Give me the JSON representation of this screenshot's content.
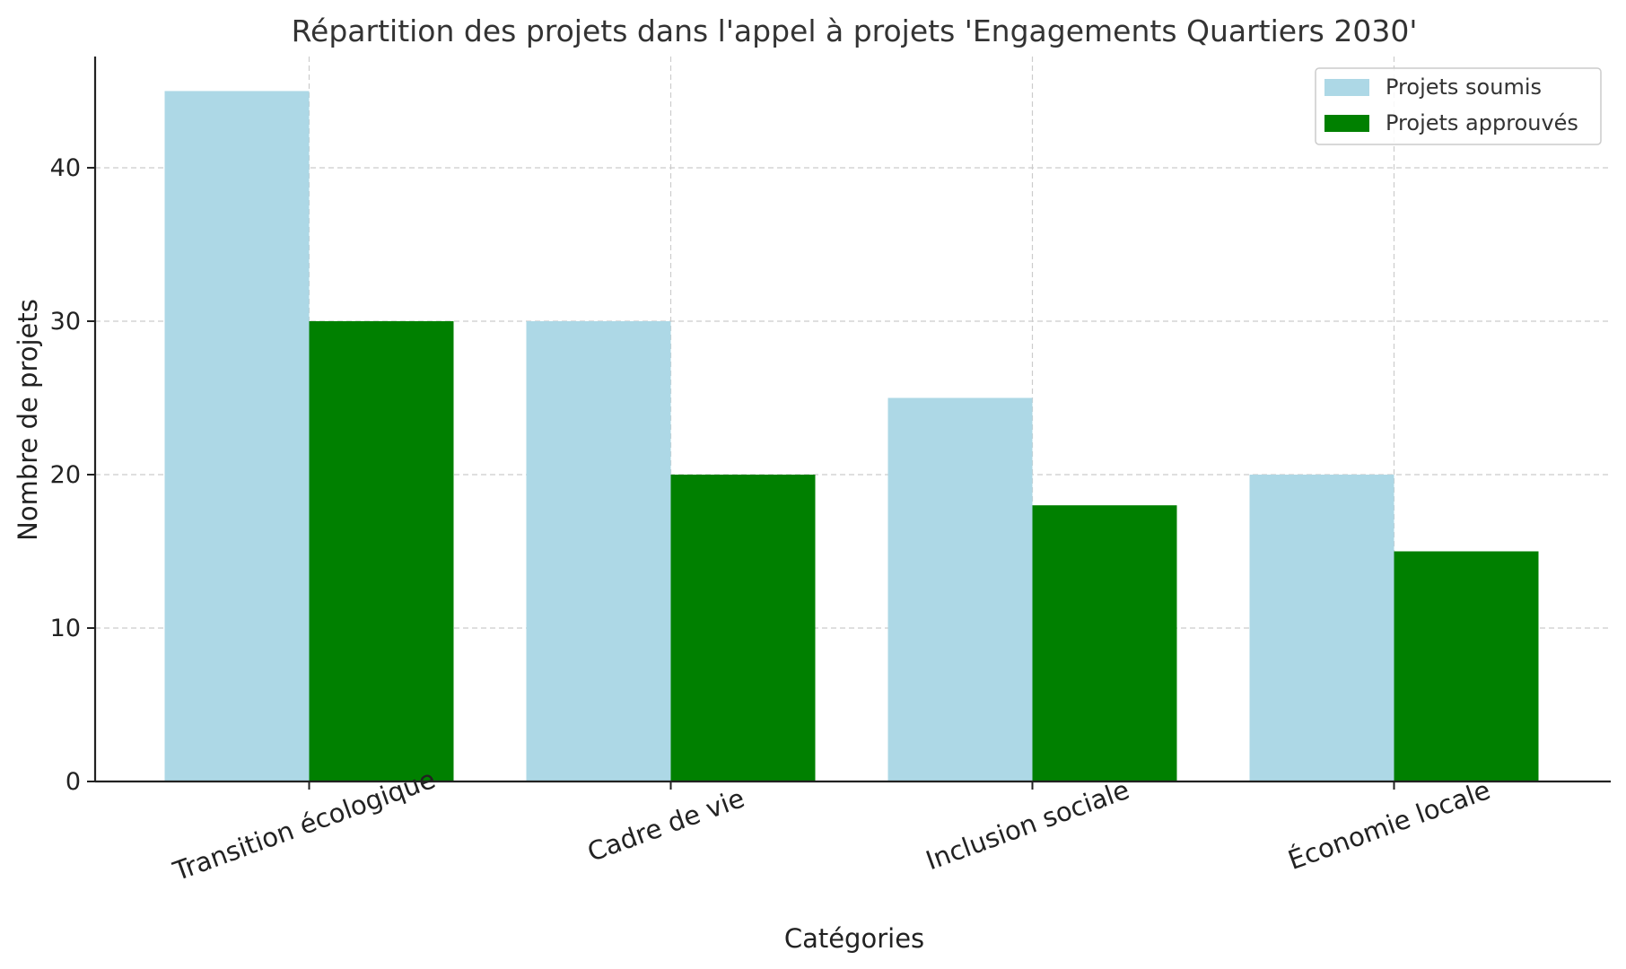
{
  "chart_data": {
    "type": "bar",
    "title": "Répartition des projets dans l'appel à projets 'Engagements Quartiers 2030'",
    "xlabel": "Catégories",
    "ylabel": "Nombre de projets",
    "categories": [
      "Transition écologique",
      "Cadre de vie",
      "Inclusion sociale",
      "Économie locale"
    ],
    "series": [
      {
        "name": "Projets soumis",
        "values": [
          45,
          30,
          25,
          20
        ],
        "color": "#add8e6"
      },
      {
        "name": "Projets approuvés",
        "values": [
          30,
          20,
          18,
          15
        ],
        "color": "#008000"
      }
    ],
    "ylim": [
      0,
      47.25
    ],
    "yticks": [
      0,
      10,
      20,
      30,
      40
    ],
    "grid": true,
    "legend_position": "top-right"
  }
}
